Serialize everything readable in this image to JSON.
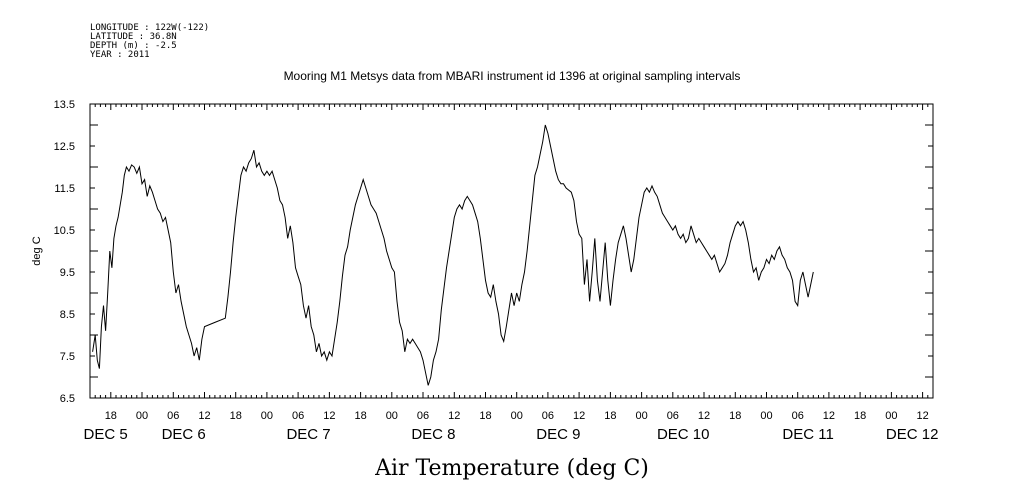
{
  "header": {
    "meta_lines": [
      "LONGITUDE : 122W(-122)",
      "LATITUDE : 36.8N",
      "DEPTH (m) : -2.5",
      "YEAR : 2011"
    ]
  },
  "chart_data": {
    "type": "line",
    "title": "Mooring M1 Metsys data from MBARI instrument id 1396 at original sampling intervals",
    "xlabel": "Air Temperature (deg C)",
    "ylabel": "deg C",
    "ylim": [
      6.5,
      13.5
    ],
    "yticks": [
      "6.5",
      "7.5",
      "8.5",
      "9.5",
      "10.5",
      "11.5",
      "12.5",
      "13.5"
    ],
    "xlim_hours": [
      14,
      176
    ],
    "hour_ticks": [
      {
        "h": 18,
        "label": "18"
      },
      {
        "h": 24,
        "label": "00"
      },
      {
        "h": 30,
        "label": "06"
      },
      {
        "h": 36,
        "label": "12"
      },
      {
        "h": 42,
        "label": "18"
      },
      {
        "h": 48,
        "label": "00"
      },
      {
        "h": 54,
        "label": "06"
      },
      {
        "h": 60,
        "label": "12"
      },
      {
        "h": 66,
        "label": "18"
      },
      {
        "h": 72,
        "label": "00"
      },
      {
        "h": 78,
        "label": "06"
      },
      {
        "h": 84,
        "label": "12"
      },
      {
        "h": 90,
        "label": "18"
      },
      {
        "h": 96,
        "label": "00"
      },
      {
        "h": 102,
        "label": "06"
      },
      {
        "h": 108,
        "label": "12"
      },
      {
        "h": 114,
        "label": "18"
      },
      {
        "h": 120,
        "label": "00"
      },
      {
        "h": 126,
        "label": "06"
      },
      {
        "h": 132,
        "label": "12"
      },
      {
        "h": 138,
        "label": "18"
      },
      {
        "h": 144,
        "label": "00"
      },
      {
        "h": 150,
        "label": "06"
      },
      {
        "h": 156,
        "label": "12"
      },
      {
        "h": 162,
        "label": "18"
      },
      {
        "h": 168,
        "label": "00"
      },
      {
        "h": 174,
        "label": "12"
      }
    ],
    "day_labels": [
      {
        "h": 17,
        "label": "DEC  5"
      },
      {
        "h": 32,
        "label": "DEC  6"
      },
      {
        "h": 56,
        "label": "DEC  7"
      },
      {
        "h": 80,
        "label": "DEC  8"
      },
      {
        "h": 104,
        "label": "DEC  9"
      },
      {
        "h": 128,
        "label": "DEC 10"
      },
      {
        "h": 152,
        "label": "DEC 11"
      },
      {
        "h": 172,
        "label": "DEC 12"
      }
    ],
    "series": [
      {
        "points": [
          [
            14.5,
            7.6
          ],
          [
            15,
            8.0
          ],
          [
            15.4,
            7.4
          ],
          [
            15.8,
            7.2
          ],
          [
            16.2,
            8.2
          ],
          [
            16.6,
            8.7
          ],
          [
            17,
            8.1
          ],
          [
            17.4,
            9.0
          ],
          [
            17.8,
            10.0
          ],
          [
            18.2,
            9.6
          ],
          [
            18.6,
            10.3
          ],
          [
            19,
            10.6
          ],
          [
            19.4,
            10.8
          ],
          [
            19.8,
            11.1
          ],
          [
            20.2,
            11.4
          ],
          [
            20.6,
            11.8
          ],
          [
            21,
            12.0
          ],
          [
            21.5,
            11.9
          ],
          [
            22,
            12.05
          ],
          [
            22.5,
            12.0
          ],
          [
            23,
            11.85
          ],
          [
            23.5,
            12.0
          ],
          [
            24,
            11.6
          ],
          [
            24.5,
            11.7
          ],
          [
            25,
            11.3
          ],
          [
            25.5,
            11.55
          ],
          [
            26,
            11.4
          ],
          [
            26.5,
            11.2
          ],
          [
            27,
            11.0
          ],
          [
            27.5,
            10.9
          ],
          [
            28,
            10.7
          ],
          [
            28.5,
            10.8
          ],
          [
            29,
            10.5
          ],
          [
            29.5,
            10.2
          ],
          [
            30,
            9.5
          ],
          [
            30.5,
            9.0
          ],
          [
            31,
            9.2
          ],
          [
            31.5,
            8.8
          ],
          [
            32,
            8.5
          ],
          [
            32.5,
            8.2
          ],
          [
            33,
            8.0
          ],
          [
            33.5,
            7.8
          ],
          [
            34,
            7.5
          ],
          [
            34.5,
            7.7
          ],
          [
            35,
            7.4
          ],
          [
            35.5,
            7.9
          ],
          [
            36,
            8.2
          ],
          [
            38,
            8.3
          ],
          [
            40,
            8.4
          ],
          [
            40.5,
            8.9
          ],
          [
            41,
            9.5
          ],
          [
            41.5,
            10.2
          ],
          [
            42,
            10.8
          ],
          [
            42.5,
            11.3
          ],
          [
            43,
            11.8
          ],
          [
            43.5,
            12.0
          ],
          [
            44,
            11.9
          ],
          [
            44.5,
            12.1
          ],
          [
            45,
            12.2
          ],
          [
            45.5,
            12.4
          ],
          [
            46,
            12.0
          ],
          [
            46.5,
            12.1
          ],
          [
            47,
            11.9
          ],
          [
            47.5,
            11.8
          ],
          [
            48,
            11.9
          ],
          [
            48.5,
            11.8
          ],
          [
            49,
            11.9
          ],
          [
            49.5,
            11.7
          ],
          [
            50,
            11.5
          ],
          [
            50.5,
            11.2
          ],
          [
            51,
            11.1
          ],
          [
            51.5,
            10.8
          ],
          [
            52,
            10.3
          ],
          [
            52.5,
            10.6
          ],
          [
            53,
            10.2
          ],
          [
            53.5,
            9.6
          ],
          [
            54,
            9.4
          ],
          [
            54.5,
            9.2
          ],
          [
            55,
            8.7
          ],
          [
            55.5,
            8.4
          ],
          [
            56,
            8.7
          ],
          [
            56.5,
            8.2
          ],
          [
            57,
            8.0
          ],
          [
            57.5,
            7.6
          ],
          [
            58,
            7.8
          ],
          [
            58.5,
            7.5
          ],
          [
            59,
            7.6
          ],
          [
            59.5,
            7.4
          ],
          [
            60,
            7.6
          ],
          [
            60.5,
            7.5
          ],
          [
            61,
            7.9
          ],
          [
            61.5,
            8.3
          ],
          [
            62,
            8.8
          ],
          [
            62.5,
            9.4
          ],
          [
            63,
            9.9
          ],
          [
            63.5,
            10.1
          ],
          [
            64,
            10.5
          ],
          [
            64.5,
            10.8
          ],
          [
            65,
            11.1
          ],
          [
            65.5,
            11.3
          ],
          [
            66,
            11.5
          ],
          [
            66.5,
            11.7
          ],
          [
            67,
            11.5
          ],
          [
            67.5,
            11.3
          ],
          [
            68,
            11.1
          ],
          [
            68.5,
            11.0
          ],
          [
            69,
            10.9
          ],
          [
            69.5,
            10.7
          ],
          [
            70,
            10.5
          ],
          [
            70.5,
            10.3
          ],
          [
            71,
            10.0
          ],
          [
            71.5,
            9.8
          ],
          [
            72,
            9.6
          ],
          [
            72.5,
            9.5
          ],
          [
            73,
            8.8
          ],
          [
            73.5,
            8.3
          ],
          [
            74,
            8.1
          ],
          [
            74.5,
            7.6
          ],
          [
            75,
            7.9
          ],
          [
            75.5,
            7.8
          ],
          [
            76,
            7.9
          ],
          [
            76.5,
            7.8
          ],
          [
            77,
            7.7
          ],
          [
            77.5,
            7.6
          ],
          [
            78,
            7.4
          ],
          [
            78.5,
            7.1
          ],
          [
            79,
            6.8
          ],
          [
            79.5,
            7.0
          ],
          [
            80,
            7.4
          ],
          [
            80.5,
            7.6
          ],
          [
            81,
            7.9
          ],
          [
            81.5,
            8.6
          ],
          [
            82,
            9.1
          ],
          [
            82.5,
            9.6
          ],
          [
            83,
            10.0
          ],
          [
            83.5,
            10.4
          ],
          [
            84,
            10.8
          ],
          [
            84.5,
            11.0
          ],
          [
            85,
            11.1
          ],
          [
            85.5,
            11.0
          ],
          [
            86,
            11.2
          ],
          [
            86.5,
            11.3
          ],
          [
            87,
            11.2
          ],
          [
            87.5,
            11.1
          ],
          [
            88,
            10.9
          ],
          [
            88.5,
            10.7
          ],
          [
            89,
            10.3
          ],
          [
            89.5,
            9.8
          ],
          [
            90,
            9.3
          ],
          [
            90.5,
            9.0
          ],
          [
            91,
            8.9
          ],
          [
            91.5,
            9.2
          ],
          [
            92,
            8.8
          ],
          [
            92.5,
            8.5
          ],
          [
            93,
            8.0
          ],
          [
            93.5,
            7.85
          ],
          [
            94,
            8.2
          ],
          [
            94.5,
            8.6
          ],
          [
            95,
            9.0
          ],
          [
            95.5,
            8.7
          ],
          [
            96,
            9.0
          ],
          [
            96.5,
            8.8
          ],
          [
            97,
            9.2
          ],
          [
            97.5,
            9.5
          ],
          [
            98,
            10.0
          ],
          [
            98.5,
            10.6
          ],
          [
            99,
            11.2
          ],
          [
            99.5,
            11.8
          ],
          [
            100,
            12.0
          ],
          [
            100.5,
            12.3
          ],
          [
            101,
            12.6
          ],
          [
            101.5,
            13.0
          ],
          [
            102,
            12.8
          ],
          [
            102.5,
            12.5
          ],
          [
            103,
            12.2
          ],
          [
            103.5,
            11.9
          ],
          [
            104,
            11.7
          ],
          [
            104.5,
            11.6
          ],
          [
            105,
            11.6
          ],
          [
            105.5,
            11.5
          ],
          [
            106,
            11.45
          ],
          [
            106.5,
            11.4
          ],
          [
            107,
            11.2
          ],
          [
            107.5,
            10.7
          ],
          [
            108,
            10.4
          ],
          [
            108.5,
            10.3
          ],
          [
            109,
            9.2
          ],
          [
            109.5,
            9.8
          ],
          [
            110,
            8.8
          ],
          [
            110.5,
            9.5
          ],
          [
            111,
            10.3
          ],
          [
            111.5,
            9.3
          ],
          [
            112,
            8.8
          ],
          [
            112.5,
            9.5
          ],
          [
            113,
            10.2
          ],
          [
            113.5,
            9.3
          ],
          [
            114,
            8.7
          ],
          [
            114.5,
            9.3
          ],
          [
            115,
            9.8
          ],
          [
            115.5,
            10.2
          ],
          [
            116,
            10.4
          ],
          [
            116.5,
            10.6
          ],
          [
            117,
            10.3
          ],
          [
            117.5,
            9.9
          ],
          [
            118,
            9.5
          ],
          [
            118.5,
            9.8
          ],
          [
            119,
            10.3
          ],
          [
            119.5,
            10.8
          ],
          [
            120,
            11.1
          ],
          [
            120.5,
            11.4
          ],
          [
            121,
            11.5
          ],
          [
            121.5,
            11.4
          ],
          [
            122,
            11.55
          ],
          [
            122.5,
            11.4
          ],
          [
            123,
            11.3
          ],
          [
            123.5,
            11.1
          ],
          [
            124,
            10.9
          ],
          [
            124.5,
            10.8
          ],
          [
            125,
            10.7
          ],
          [
            125.5,
            10.6
          ],
          [
            126,
            10.5
          ],
          [
            126.5,
            10.6
          ],
          [
            127,
            10.4
          ],
          [
            127.5,
            10.3
          ],
          [
            128,
            10.4
          ],
          [
            128.5,
            10.2
          ],
          [
            129,
            10.3
          ],
          [
            129.5,
            10.6
          ],
          [
            130,
            10.4
          ],
          [
            130.5,
            10.2
          ],
          [
            131,
            10.3
          ],
          [
            131.5,
            10.2
          ],
          [
            132,
            10.1
          ],
          [
            132.5,
            10.0
          ],
          [
            133,
            9.9
          ],
          [
            133.5,
            9.8
          ],
          [
            134,
            9.9
          ],
          [
            134.5,
            9.7
          ],
          [
            135,
            9.5
          ],
          [
            135.5,
            9.6
          ],
          [
            136,
            9.7
          ],
          [
            136.5,
            9.9
          ],
          [
            137,
            10.2
          ],
          [
            137.5,
            10.4
          ],
          [
            138,
            10.6
          ],
          [
            138.5,
            10.7
          ],
          [
            139,
            10.6
          ],
          [
            139.5,
            10.7
          ],
          [
            140,
            10.5
          ],
          [
            140.5,
            10.2
          ],
          [
            141,
            9.8
          ],
          [
            141.5,
            9.5
          ],
          [
            142,
            9.6
          ],
          [
            142.5,
            9.3
          ],
          [
            143,
            9.5
          ],
          [
            143.5,
            9.6
          ],
          [
            144,
            9.8
          ],
          [
            144.5,
            9.7
          ],
          [
            145,
            9.9
          ],
          [
            145.5,
            9.8
          ],
          [
            146,
            10.0
          ],
          [
            146.5,
            10.1
          ],
          [
            147,
            9.9
          ],
          [
            147.5,
            9.8
          ],
          [
            148,
            9.6
          ],
          [
            148.5,
            9.5
          ],
          [
            149,
            9.3
          ],
          [
            149.5,
            8.8
          ],
          [
            150,
            8.7
          ],
          [
            150.5,
            9.3
          ],
          [
            151,
            9.5
          ],
          [
            151.5,
            9.2
          ],
          [
            152,
            8.9
          ],
          [
            152.5,
            9.2
          ],
          [
            153,
            9.5
          ]
        ]
      }
    ]
  }
}
